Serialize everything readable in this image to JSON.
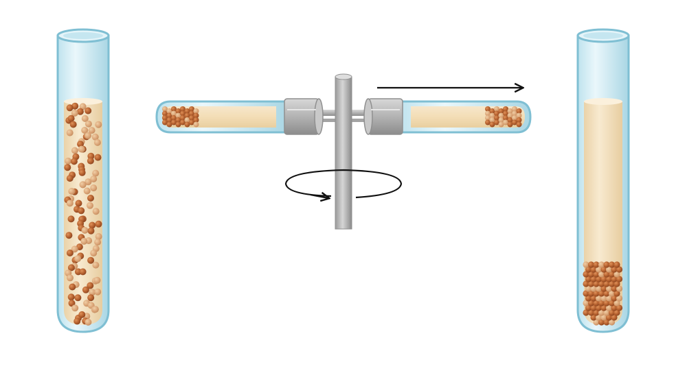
{
  "diagram": {
    "panels": [
      {
        "id": "before",
        "state": "suspended particles"
      },
      {
        "id": "centrifuge",
        "state": "spinning"
      },
      {
        "id": "after",
        "state": "pellet at bottom"
      }
    ],
    "colors": {
      "liquid": "#f4e2c0",
      "liquid_highlight": "#fbf0dc",
      "particle_dark": "#b4602e",
      "particle_light": "#dca77a",
      "glass": "#d6eef6",
      "glass_edge": "#7fbfd3",
      "metal": "#b9b9b9",
      "metal_dark": "#8f8f8f",
      "arrow": "#111111"
    },
    "icons": [
      "test-tube-icon",
      "centrifuge-rotor-icon",
      "rotation-arrow-icon",
      "direction-arrow-icon"
    ]
  }
}
